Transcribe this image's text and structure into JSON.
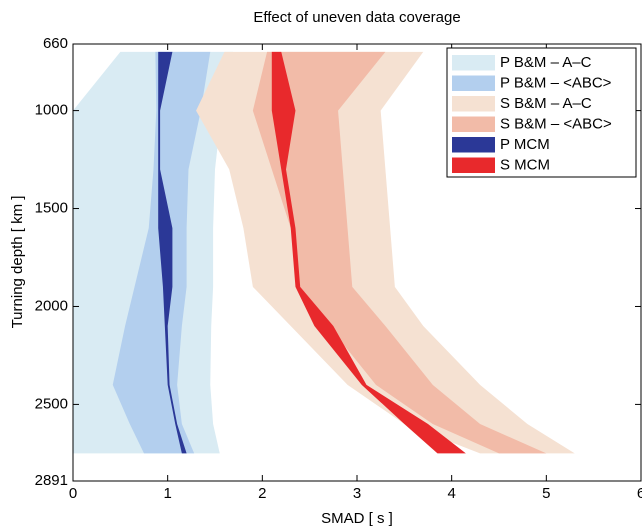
{
  "chart_data": {
    "type": "band",
    "title": "Effect of uneven data coverage",
    "xlabel": "SMAD [ s ]",
    "ylabel": "Turning depth [ km ]",
    "xlim": [
      0,
      6
    ],
    "xticks": [
      0,
      1,
      2,
      3,
      4,
      5,
      6
    ],
    "ylim": [
      2891,
      660
    ],
    "yticks": [
      660,
      1000,
      1500,
      2000,
      2500,
      2891
    ],
    "legend": "upper right",
    "depths": [
      700,
      1000,
      1300,
      1600,
      1900,
      2100,
      2400,
      2600,
      2750
    ],
    "series": [
      {
        "name": "P B&M – A–C",
        "color": "#d9ebf3",
        "x_low": [
          0.5,
          0.0,
          0.0,
          0.0,
          0.0,
          0.0,
          0.0,
          0.0,
          0.0
        ],
        "x_high": [
          1.69,
          1.57,
          1.5,
          1.48,
          1.48,
          1.46,
          1.45,
          1.48,
          1.55
        ]
      },
      {
        "name": "P B&M – <ABC>",
        "color": "#b3cfee",
        "x_low": [
          0.87,
          0.88,
          0.85,
          0.8,
          0.65,
          0.55,
          0.42,
          0.6,
          0.75
        ],
        "x_high": [
          1.45,
          1.35,
          1.22,
          1.2,
          1.2,
          1.15,
          1.1,
          1.15,
          1.28
        ]
      },
      {
        "name": "S B&M – A–C",
        "color": "#f5e1d2",
        "x_low": [
          1.6,
          1.3,
          1.65,
          1.8,
          1.9,
          2.3,
          2.9,
          3.5,
          4.3
        ],
        "x_high": [
          3.7,
          3.25,
          3.3,
          3.35,
          3.4,
          3.7,
          4.3,
          4.8,
          5.3
        ]
      },
      {
        "name": "S B&M – <ABC>",
        "color": "#f2bba8",
        "x_low": [
          2.05,
          1.9,
          2.1,
          2.3,
          2.4,
          2.7,
          3.2,
          3.8,
          4.5
        ],
        "x_high": [
          3.3,
          2.8,
          2.85,
          2.9,
          2.95,
          3.3,
          3.8,
          4.3,
          5.0
        ]
      },
      {
        "name": "P MCM",
        "color": "#2b3897",
        "x_low": [
          0.9,
          0.9,
          0.9,
          0.9,
          0.95,
          0.97,
          1.0,
          1.08,
          1.15
        ],
        "x_high": [
          1.05,
          0.92,
          0.92,
          1.05,
          1.05,
          1.0,
          1.02,
          1.1,
          1.2
        ]
      },
      {
        "name": "S MCM",
        "color": "#e8292c",
        "x_low": [
          2.1,
          2.1,
          2.2,
          2.3,
          2.35,
          2.55,
          3.05,
          3.5,
          3.85
        ],
        "x_high": [
          2.2,
          2.35,
          2.25,
          2.35,
          2.4,
          2.75,
          3.1,
          3.75,
          4.15
        ]
      }
    ]
  }
}
